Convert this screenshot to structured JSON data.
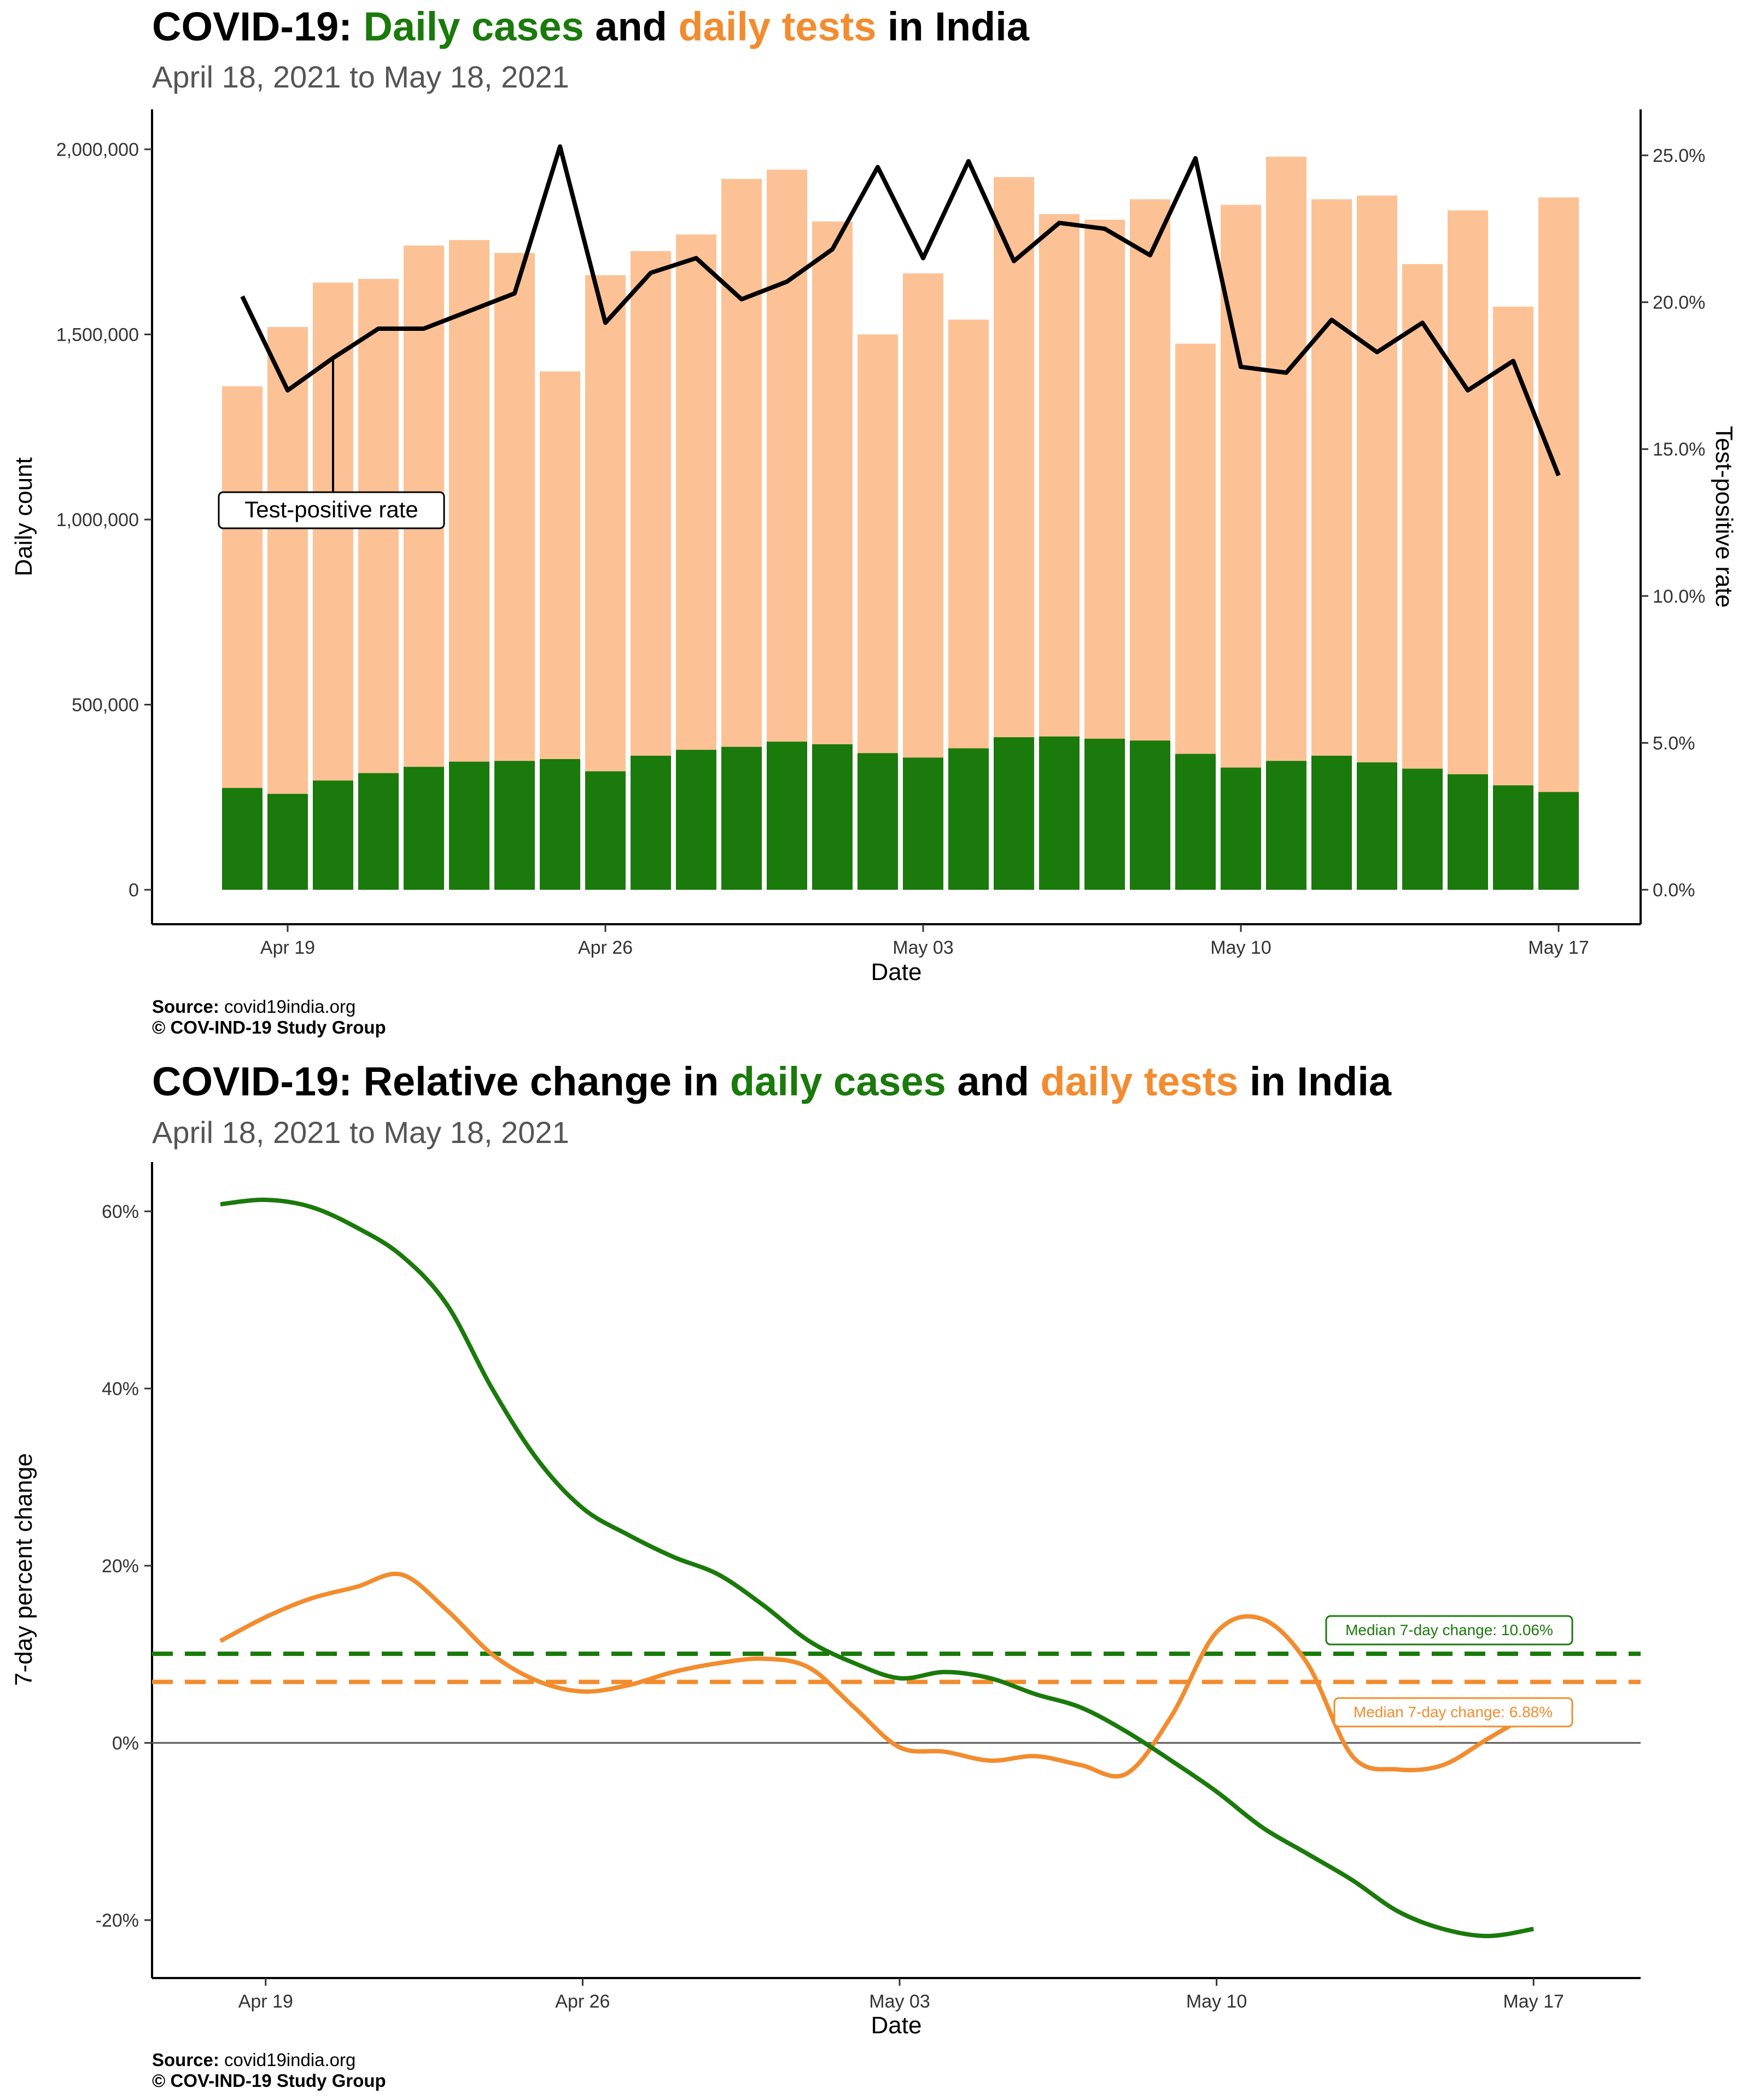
{
  "chart1": {
    "title": {
      "pre": "COVID-19: ",
      "cases": "Daily cases",
      "mid": " and ",
      "tests": "daily tests",
      "post": " in India"
    },
    "subtitle": "April 18, 2021 to May 18, 2021",
    "source_label": "Source:",
    "source_value": "covid19india.org",
    "copyright": "© COV-IND-19 Study Group"
  },
  "chart2": {
    "title": {
      "pre": "COVID-19: Relative change in ",
      "cases": "daily cases",
      "mid": " and ",
      "tests": "daily tests",
      "post": " in India"
    },
    "subtitle": "April 18, 2021 to May 18, 2021",
    "source_label": "Source:",
    "source_value": "covid19india.org",
    "copyright": "© COV-IND-19 Study Group"
  },
  "colors": {
    "cases": "#1a7a0b",
    "tests_bar": "#fcc295",
    "tests_line": "#f28c2e",
    "rate_line": "#000000"
  },
  "chart_data": [
    {
      "type": "bar",
      "stacked": false,
      "xlabel": "Date",
      "ylabel": "Daily count",
      "y2label": "Test-positive rate",
      "ylim": [
        0,
        2000000
      ],
      "y2lim": [
        0,
        25
      ],
      "yticks": [
        "0",
        "500,000",
        "1,000,000",
        "1,500,000",
        "2,000,000"
      ],
      "y2ticks": [
        "0.0%",
        "5.0%",
        "10.0%",
        "15.0%",
        "20.0%",
        "25.0%"
      ],
      "xtick_labels": [
        "Apr 19",
        "Apr 26",
        "May 03",
        "May 10",
        "May 17"
      ],
      "categories": [
        "Apr 18",
        "Apr 19",
        "Apr 20",
        "Apr 21",
        "Apr 22",
        "Apr 23",
        "Apr 24",
        "Apr 25",
        "Apr 26",
        "Apr 27",
        "Apr 28",
        "Apr 29",
        "Apr 30",
        "May 01",
        "May 02",
        "May 03",
        "May 04",
        "May 05",
        "May 06",
        "May 07",
        "May 08",
        "May 09",
        "May 10",
        "May 11",
        "May 12",
        "May 13",
        "May 14",
        "May 15",
        "May 16",
        "May 17"
      ],
      "series": [
        {
          "kind": "bar",
          "values": [
            1360000,
            1520000,
            1640000,
            1650000,
            1740000,
            1755000,
            1720000,
            1400000,
            1660000,
            1725000,
            1770000,
            1920000,
            1945000,
            1805000,
            1500000,
            1665000,
            1540000,
            1925000,
            1825000,
            1810000,
            1865000,
            1475000,
            1850000,
            1980000,
            1865000,
            1875000,
            1690000,
            1835000,
            1575000,
            1870000
          ]
        },
        {
          "kind": "bar",
          "values": [
            275000,
            259000,
            295000,
            315000,
            332000,
            346000,
            348000,
            353000,
            320000,
            362000,
            378000,
            386000,
            400000,
            393000,
            369000,
            357000,
            382000,
            412000,
            414000,
            408000,
            403000,
            367000,
            330000,
            348000,
            362000,
            344000,
            327000,
            312000,
            282000,
            264000
          ]
        },
        {
          "kind": "line",
          "axis": "right",
          "values": [
            20.2,
            17.0,
            18.1,
            19.1,
            19.1,
            19.7,
            20.3,
            25.3,
            19.3,
            21.0,
            21.5,
            20.1,
            20.7,
            21.8,
            24.6,
            21.5,
            24.8,
            21.4,
            22.7,
            22.5,
            21.6,
            24.9,
            17.8,
            17.6,
            19.4,
            18.3,
            19.3,
            17.0,
            18.0,
            14.1
          ]
        }
      ],
      "annotation": "Test-positive rate"
    },
    {
      "type": "line",
      "xlabel": "Date",
      "ylabel": "7-day percent change",
      "ylim": [
        -22,
        62
      ],
      "yticks": [
        "-20%",
        "0%",
        "20%",
        "40%",
        "60%"
      ],
      "xtick_labels": [
        "Apr 19",
        "Apr 26",
        "May 03",
        "May 10",
        "May 17"
      ],
      "x": [
        "Apr 18",
        "Apr 19",
        "Apr 20",
        "Apr 21",
        "Apr 22",
        "Apr 23",
        "Apr 24",
        "Apr 25",
        "Apr 26",
        "Apr 27",
        "Apr 28",
        "Apr 29",
        "Apr 30",
        "May 01",
        "May 02",
        "May 03",
        "May 04",
        "May 05",
        "May 06",
        "May 07",
        "May 08",
        "May 09",
        "May 10",
        "May 11",
        "May 12",
        "May 13",
        "May 14",
        "May 15",
        "May 16",
        "May 17"
      ],
      "series": [
        {
          "values": [
            60.8,
            61.3,
            60.5,
            58.2,
            55.0,
            49.5,
            40.0,
            32.0,
            26.5,
            23.5,
            21.0,
            19.0,
            15.5,
            11.5,
            9.0,
            7.3,
            8.0,
            7.3,
            5.5,
            4.0,
            1.3,
            -2.0,
            -5.5,
            -9.5,
            -12.5,
            -15.5,
            -19.0,
            -21.0,
            -21.8,
            -21.0
          ]
        },
        {
          "values": [
            11.5,
            14.2,
            16.3,
            17.6,
            19.0,
            15.0,
            10.0,
            7.0,
            5.8,
            6.5,
            8.0,
            9.0,
            9.5,
            8.5,
            4.0,
            -0.5,
            -1.0,
            -2.0,
            -1.5,
            -2.5,
            -3.5,
            3.0,
            12.5,
            14.0,
            9.0,
            -1.5,
            -3.0,
            -2.5,
            0.5,
            3.5
          ]
        }
      ],
      "reference_lines": [
        {
          "value": 10.06,
          "label": "Median 7-day change: 10.06%"
        },
        {
          "value": 6.88,
          "label": "Median 7-day change: 6.88%"
        },
        {
          "value": 0
        }
      ]
    }
  ]
}
